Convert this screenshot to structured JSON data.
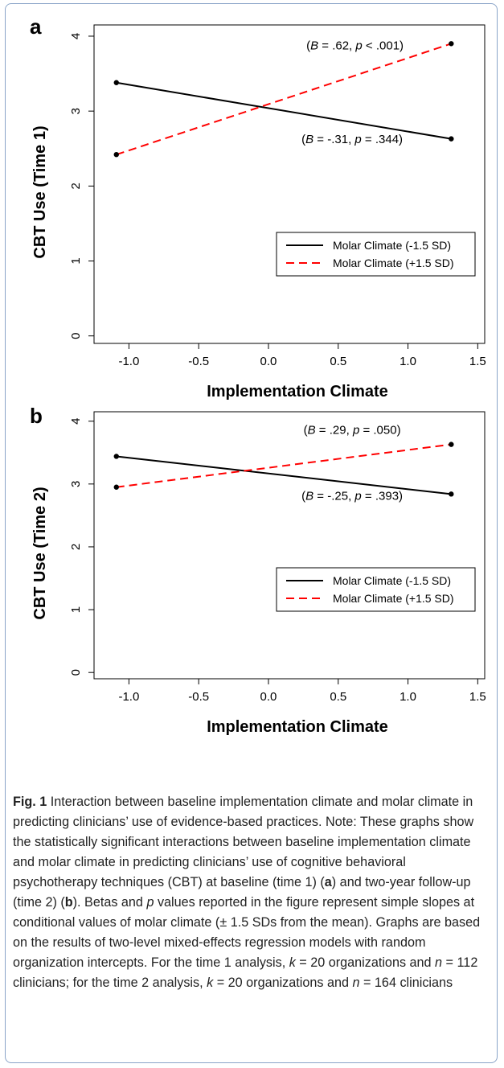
{
  "chart_data": [
    {
      "type": "line",
      "panel_label": "a",
      "xlabel": "Implementation Climate",
      "ylabel": "CBT Use (Time 1)",
      "xlim": [
        -1.25,
        1.55
      ],
      "ylim": [
        -0.1,
        4.15
      ],
      "xticks": [
        "-1.0",
        "-0.5",
        "0.0",
        "0.5",
        "1.0",
        "1.5"
      ],
      "xtick_values": [
        -1.0,
        -0.5,
        0.0,
        0.5,
        1.0,
        1.5
      ],
      "yticks": [
        "0",
        "1",
        "2",
        "3",
        "4"
      ],
      "ytick_values": [
        0,
        1,
        2,
        3,
        4
      ],
      "grid": false,
      "legend_position": "bottom-right",
      "series": [
        {
          "name": "Molar Climate (-1.5 SD)",
          "color": "#000000",
          "dash": "solid",
          "x": [
            -1.09,
            1.31
          ],
          "y": [
            3.38,
            2.63
          ]
        },
        {
          "name": "Molar Climate (+1.5 SD)",
          "color": "#ff0000",
          "dash": "dashed",
          "x": [
            -1.09,
            1.31
          ],
          "y": [
            2.42,
            3.9
          ]
        }
      ],
      "annotations": [
        {
          "pre": "(",
          "b": "B",
          "eq1": " = .62, ",
          "p": "p",
          "rest": " < .001)",
          "x": 0.62,
          "y": 3.82
        },
        {
          "pre": "(",
          "b": "B",
          "eq1": " = -.31, ",
          "p": "p",
          "rest": " = .344)",
          "x": 0.6,
          "y": 2.57
        }
      ]
    },
    {
      "type": "line",
      "panel_label": "b",
      "xlabel": "Implementation Climate",
      "ylabel": "CBT Use (Time 2)",
      "xlim": [
        -1.25,
        1.55
      ],
      "ylim": [
        -0.1,
        4.15
      ],
      "xticks": [
        "-1.0",
        "-0.5",
        "0.0",
        "0.5",
        "1.0",
        "1.5"
      ],
      "xtick_values": [
        -1.0,
        -0.5,
        0.0,
        0.5,
        1.0,
        1.5
      ],
      "yticks": [
        "0",
        "1",
        "2",
        "3",
        "4"
      ],
      "ytick_values": [
        0,
        1,
        2,
        3,
        4
      ],
      "grid": false,
      "legend_position": "bottom-right",
      "series": [
        {
          "name": "Molar Climate (-1.5 SD)",
          "color": "#000000",
          "dash": "solid",
          "x": [
            -1.09,
            1.31
          ],
          "y": [
            3.44,
            2.84
          ]
        },
        {
          "name": "Molar Climate (+1.5 SD)",
          "color": "#ff0000",
          "dash": "dashed",
          "x": [
            -1.09,
            1.31
          ],
          "y": [
            2.95,
            3.63
          ]
        }
      ],
      "annotations": [
        {
          "pre": "(",
          "b": "B",
          "eq1": " = .29, ",
          "p": "p",
          "rest": " = .050)",
          "x": 0.6,
          "y": 3.8
        },
        {
          "pre": "(",
          "b": "B",
          "eq1": " = -.25, ",
          "p": "p",
          "rest": " = .393)",
          "x": 0.6,
          "y": 2.75
        }
      ]
    }
  ],
  "caption": {
    "fig_label": "Fig. 1",
    "segments": [
      {
        "t": " Interaction between baseline implementation climate and molar climate in predicting clinicians’ use of evidence-based practices. Note: These graphs show the statistically significant interactions between baseline implementation climate and molar climate in predicting clinicians’ use of cognitive behavioral psychotherapy techniques (CBT) at baseline (time 1) ("
      },
      {
        "t": "a",
        "s": "b"
      },
      {
        "t": ") and two-year follow-up (time 2) ("
      },
      {
        "t": "b",
        "s": "b"
      },
      {
        "t": "). Betas and "
      },
      {
        "t": "p",
        "s": "i"
      },
      {
        "t": " values reported in the figure represent simple slopes at conditional values of molar climate (± 1.5 SDs from the mean). Graphs are based on the results of two-level mixed-effects regression models with random organization intercepts. For the time 1 analysis, "
      },
      {
        "t": "k",
        "s": "i"
      },
      {
        "t": " = 20 organizations and "
      },
      {
        "t": "n",
        "s": "i"
      },
      {
        "t": " = 112 clinicians; for the time 2 analysis, "
      },
      {
        "t": "k",
        "s": "i"
      },
      {
        "t": " = 20 organizations and "
      },
      {
        "t": "n",
        "s": "i"
      },
      {
        "t": " = 164 clinicians"
      }
    ]
  }
}
